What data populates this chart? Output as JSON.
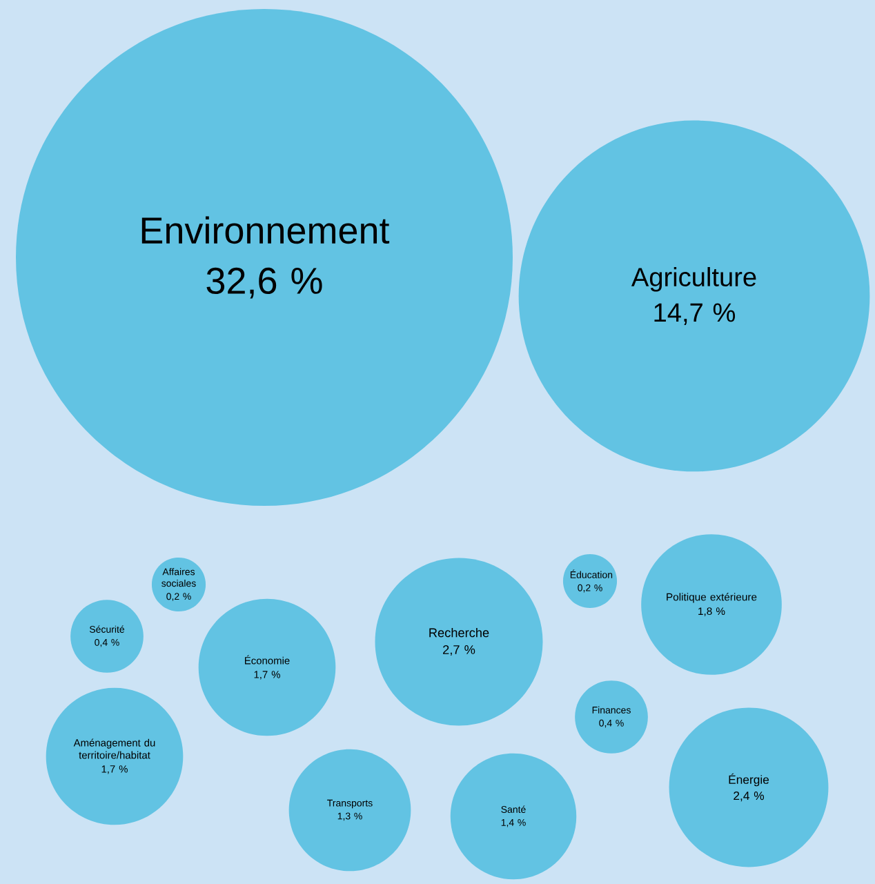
{
  "chart_data": {
    "type": "other",
    "categories": [
      "Environnement",
      "Agriculture",
      "Affaires sociales",
      "Sécurité",
      "Économie",
      "Recherche",
      "Éducation",
      "Politique extérieure",
      "Aménagement du territoire/habitat",
      "Finances",
      "Transports",
      "Santé",
      "Énergie"
    ],
    "values": [
      32.6,
      14.7,
      0.2,
      0.4,
      1.7,
      2.7,
      0.2,
      1.8,
      1.7,
      0.4,
      1.3,
      1.4,
      2.4
    ],
    "value_labels": [
      "32,6 %",
      "14,7 %",
      "0,2 %",
      "0,4 %",
      "1,7 %",
      "2,7 %",
      "0,2 %",
      "1,8 %",
      "1,7 %",
      "0,4 %",
      "1,3 %",
      "1,4 %",
      "2,4 %"
    ],
    "color": "#62c3e3"
  }
}
